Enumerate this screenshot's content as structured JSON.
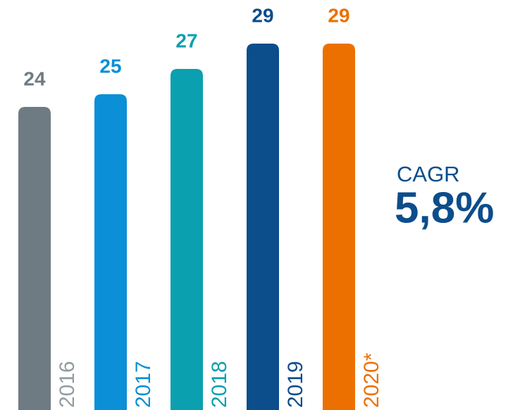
{
  "chart_data": {
    "type": "bar",
    "categories": [
      "2016",
      "2017",
      "2018",
      "2019",
      "2020*"
    ],
    "values": [
      24,
      25,
      27,
      29,
      29
    ],
    "colors": [
      "#6f7b82",
      "#0b8fd6",
      "#0aa0b0",
      "#0c4d8b",
      "#ec7000"
    ],
    "annotation": {
      "label": "CAGR",
      "text": "5,8%",
      "color": "#0c4d8b"
    }
  }
}
